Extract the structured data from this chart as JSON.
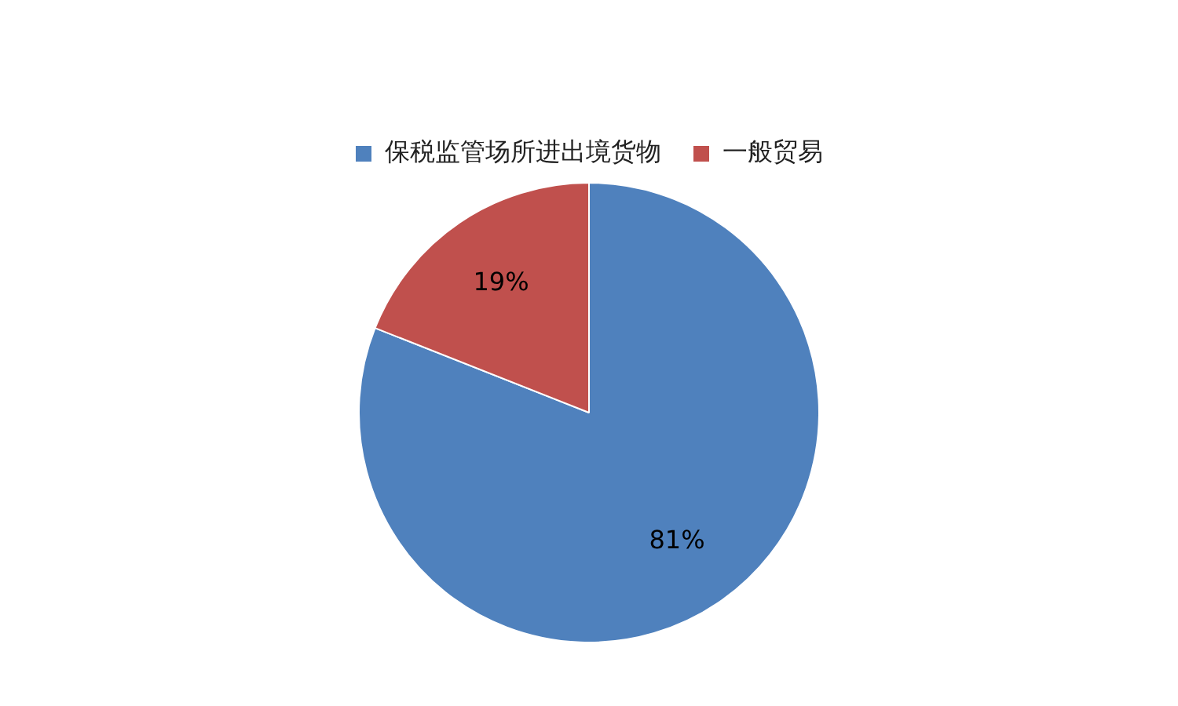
{
  "chart_data": {
    "type": "pie",
    "categories": [
      "保税监管场所进出境货物",
      "一般贸易"
    ],
    "values": [
      81,
      19
    ],
    "colors": [
      "#4f81bd",
      "#c0504d"
    ],
    "value_labels": [
      "81%",
      "19%"
    ],
    "legend": "top"
  }
}
